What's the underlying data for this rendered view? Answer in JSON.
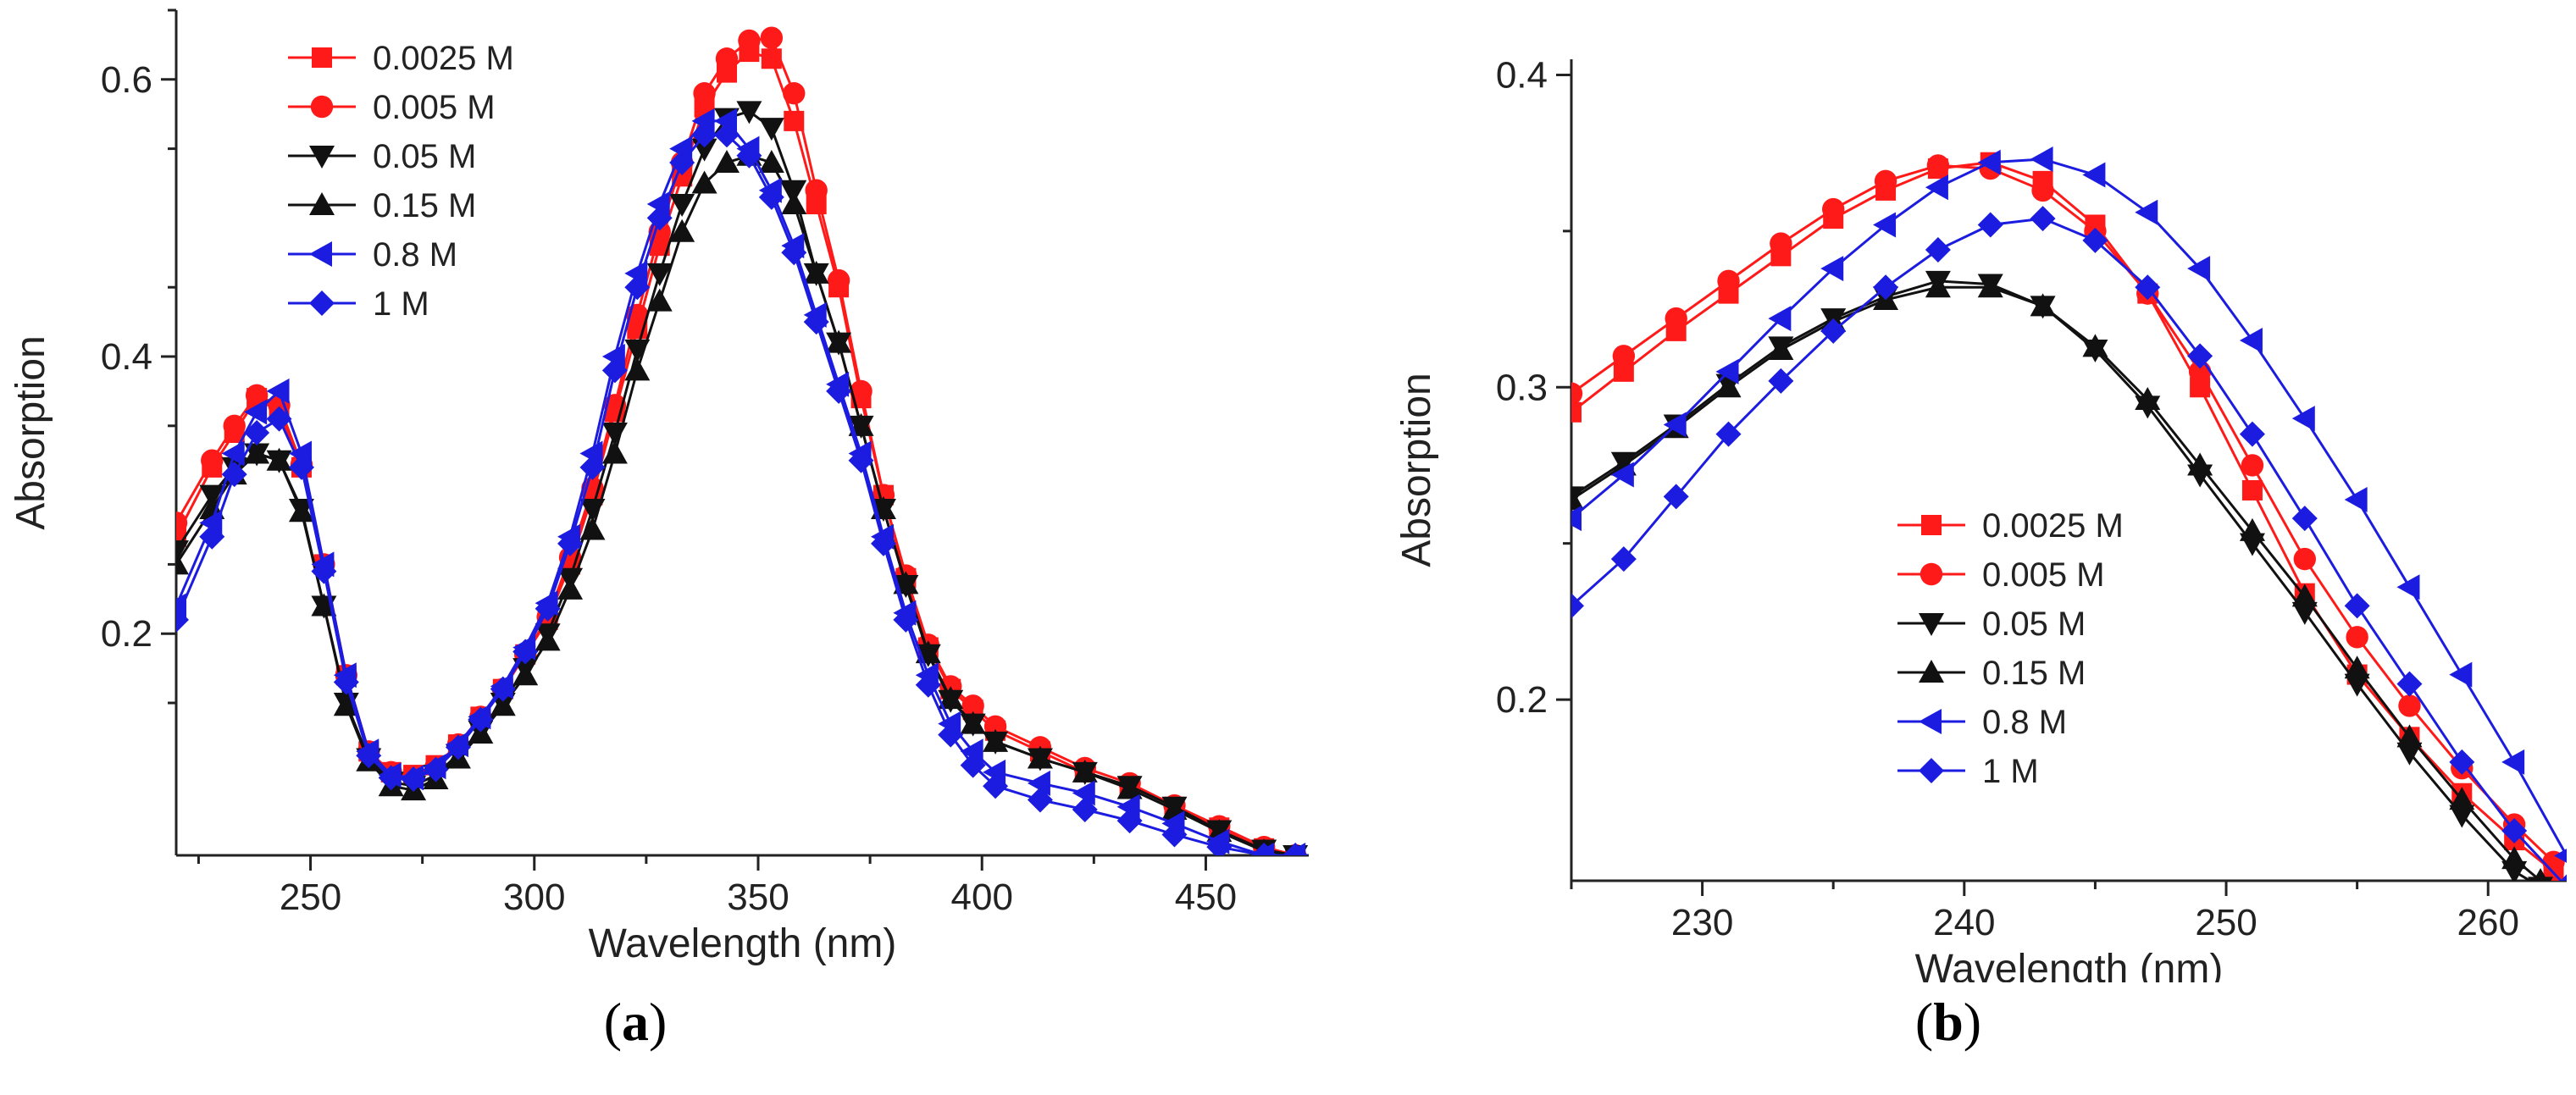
{
  "chart_data": [
    {
      "type": "line",
      "panel_label": "(a)",
      "panel_letter": "a",
      "xlabel": "Wavelength (nm)",
      "ylabel": "Absorption",
      "xlim": [
        220,
        473
      ],
      "ylim": [
        0.04,
        0.65
      ],
      "xticks": [
        250,
        300,
        350,
        400,
        450
      ],
      "xtick_labels": [
        "250",
        "300",
        "350",
        "400",
        "450"
      ],
      "xminor": [
        225,
        275,
        325,
        375,
        425,
        475
      ],
      "yticks": [
        0.2,
        0.4,
        0.6
      ],
      "ytick_labels": [
        "0.2",
        "0.4",
        "0.6"
      ],
      "legend_position": "top-left",
      "series": [
        {
          "name": "0.0025 M",
          "color": "#ff1a1a",
          "marker": "square",
          "x": [
            220,
            228,
            233,
            238,
            243,
            248,
            253,
            258,
            263,
            268,
            273,
            278,
            283,
            288,
            293,
            298,
            303,
            308,
            313,
            318,
            323,
            328,
            333,
            338,
            343,
            348,
            353,
            358,
            363,
            368,
            373,
            378,
            383,
            388,
            393,
            398,
            403,
            413,
            423,
            433,
            443,
            453,
            463,
            470
          ],
          "y": [
            0.27,
            0.32,
            0.345,
            0.37,
            0.36,
            0.32,
            0.25,
            0.17,
            0.115,
            0.1,
            0.098,
            0.105,
            0.12,
            0.14,
            0.16,
            0.185,
            0.21,
            0.25,
            0.3,
            0.36,
            0.42,
            0.48,
            0.53,
            0.58,
            0.605,
            0.62,
            0.615,
            0.57,
            0.51,
            0.45,
            0.37,
            0.3,
            0.24,
            0.19,
            0.16,
            0.145,
            0.13,
            0.115,
            0.1,
            0.09,
            0.075,
            0.06,
            0.045,
            0.04
          ]
        },
        {
          "name": "0.005 M",
          "color": "#ff1a1a",
          "marker": "circle",
          "x": [
            220,
            228,
            233,
            238,
            243,
            248,
            253,
            258,
            263,
            268,
            273,
            278,
            283,
            288,
            293,
            298,
            303,
            308,
            313,
            318,
            323,
            328,
            333,
            338,
            343,
            348,
            353,
            358,
            363,
            368,
            373,
            378,
            383,
            388,
            393,
            398,
            403,
            413,
            423,
            433,
            443,
            453,
            463,
            470
          ],
          "y": [
            0.28,
            0.325,
            0.35,
            0.372,
            0.365,
            0.322,
            0.25,
            0.17,
            0.115,
            0.1,
            0.097,
            0.104,
            0.12,
            0.14,
            0.16,
            0.185,
            0.212,
            0.255,
            0.305,
            0.365,
            0.43,
            0.49,
            0.54,
            0.59,
            0.615,
            0.628,
            0.63,
            0.59,
            0.52,
            0.455,
            0.375,
            0.3,
            0.242,
            0.192,
            0.162,
            0.148,
            0.133,
            0.118,
            0.103,
            0.092,
            0.076,
            0.061,
            0.046,
            0.04
          ]
        },
        {
          "name": "0.05 M",
          "color": "#111111",
          "marker": "triangle-down",
          "x": [
            220,
            228,
            233,
            238,
            243,
            248,
            253,
            258,
            263,
            268,
            273,
            278,
            283,
            288,
            293,
            298,
            303,
            308,
            313,
            318,
            323,
            328,
            333,
            338,
            343,
            348,
            353,
            358,
            363,
            368,
            373,
            378,
            383,
            388,
            393,
            398,
            403,
            413,
            423,
            433,
            443,
            453,
            463,
            470
          ],
          "y": [
            0.26,
            0.3,
            0.32,
            0.33,
            0.325,
            0.29,
            0.22,
            0.15,
            0.11,
            0.093,
            0.09,
            0.098,
            0.113,
            0.13,
            0.15,
            0.175,
            0.2,
            0.24,
            0.29,
            0.345,
            0.405,
            0.46,
            0.51,
            0.55,
            0.572,
            0.577,
            0.565,
            0.52,
            0.46,
            0.41,
            0.35,
            0.29,
            0.235,
            0.185,
            0.152,
            0.135,
            0.122,
            0.11,
            0.1,
            0.09,
            0.075,
            0.058,
            0.044,
            0.04
          ]
        },
        {
          "name": "0.15 M",
          "color": "#111111",
          "marker": "triangle-up",
          "x": [
            220,
            228,
            233,
            238,
            243,
            248,
            253,
            258,
            263,
            268,
            273,
            278,
            283,
            288,
            293,
            298,
            303,
            308,
            313,
            318,
            323,
            328,
            333,
            338,
            343,
            348,
            353,
            358,
            363,
            368,
            373,
            378,
            383,
            388,
            393,
            398,
            403,
            413,
            423,
            433,
            443,
            453,
            463,
            470
          ],
          "y": [
            0.25,
            0.29,
            0.315,
            0.33,
            0.325,
            0.288,
            0.22,
            0.148,
            0.108,
            0.09,
            0.087,
            0.095,
            0.11,
            0.128,
            0.148,
            0.17,
            0.195,
            0.232,
            0.275,
            0.33,
            0.39,
            0.44,
            0.49,
            0.525,
            0.54,
            0.545,
            0.54,
            0.51,
            0.46,
            0.41,
            0.35,
            0.29,
            0.236,
            0.186,
            0.153,
            0.135,
            0.122,
            0.11,
            0.1,
            0.088,
            0.073,
            0.057,
            0.043,
            0.04
          ]
        },
        {
          "name": "0.8 M",
          "color": "#1c1ce0",
          "marker": "triangle-left",
          "x": [
            220,
            228,
            233,
            238,
            243,
            248,
            253,
            258,
            263,
            268,
            273,
            278,
            283,
            288,
            293,
            298,
            303,
            308,
            313,
            318,
            323,
            328,
            333,
            338,
            343,
            348,
            353,
            358,
            363,
            368,
            373,
            378,
            383,
            388,
            393,
            398,
            403,
            413,
            423,
            433,
            443,
            453,
            463,
            470
          ],
          "y": [
            0.22,
            0.28,
            0.33,
            0.36,
            0.375,
            0.33,
            0.25,
            0.17,
            0.115,
            0.098,
            0.096,
            0.104,
            0.12,
            0.14,
            0.162,
            0.19,
            0.222,
            0.27,
            0.33,
            0.4,
            0.46,
            0.51,
            0.55,
            0.57,
            0.57,
            0.55,
            0.52,
            0.48,
            0.43,
            0.38,
            0.33,
            0.27,
            0.215,
            0.17,
            0.135,
            0.115,
            0.1,
            0.092,
            0.085,
            0.075,
            0.063,
            0.05,
            0.04,
            0.04
          ]
        },
        {
          "name": "1 M",
          "color": "#1c1ce0",
          "marker": "diamond",
          "x": [
            220,
            228,
            233,
            238,
            243,
            248,
            253,
            258,
            263,
            268,
            273,
            278,
            283,
            288,
            293,
            298,
            303,
            308,
            313,
            318,
            323,
            328,
            333,
            338,
            343,
            348,
            353,
            358,
            363,
            368,
            373,
            378,
            383,
            388,
            393,
            398,
            403,
            413,
            423,
            433,
            443,
            453,
            463,
            470
          ],
          "y": [
            0.21,
            0.27,
            0.315,
            0.345,
            0.355,
            0.32,
            0.245,
            0.165,
            0.112,
            0.096,
            0.095,
            0.102,
            0.118,
            0.138,
            0.16,
            0.187,
            0.218,
            0.265,
            0.32,
            0.39,
            0.45,
            0.5,
            0.54,
            0.56,
            0.56,
            0.545,
            0.515,
            0.475,
            0.425,
            0.375,
            0.325,
            0.265,
            0.21,
            0.163,
            0.127,
            0.105,
            0.09,
            0.08,
            0.073,
            0.065,
            0.055,
            0.046,
            0.04,
            0.04
          ]
        }
      ]
    },
    {
      "type": "line",
      "panel_label": "(b)",
      "panel_letter": "b",
      "xlabel": "Wavelength (nm)",
      "ylabel": "Absorption",
      "xlim": [
        225,
        263
      ],
      "ylim": [
        0.142,
        0.405
      ],
      "xticks": [
        230,
        240,
        250,
        260
      ],
      "xtick_labels": [
        "230",
        "240",
        "250",
        "260"
      ],
      "xminor": [
        225,
        235,
        245,
        255
      ],
      "yticks": [
        0.2,
        0.3,
        0.4
      ],
      "ytick_labels": [
        "0.2",
        "0.3",
        "0.4"
      ],
      "legend_position": "center-bottom",
      "series": [
        {
          "name": "0.0025 M",
          "color": "#ff1a1a",
          "marker": "square",
          "x": [
            225,
            227,
            229,
            231,
            233,
            235,
            237,
            239,
            241,
            243,
            245,
            247,
            249,
            251,
            253,
            255,
            257,
            259,
            261,
            262.5
          ],
          "y": [
            0.292,
            0.305,
            0.318,
            0.33,
            0.342,
            0.354,
            0.363,
            0.37,
            0.372,
            0.366,
            0.352,
            0.33,
            0.3,
            0.267,
            0.234,
            0.208,
            0.188,
            0.17,
            0.155,
            0.145
          ]
        },
        {
          "name": "0.005 M",
          "color": "#ff1a1a",
          "marker": "circle",
          "x": [
            225,
            227,
            229,
            231,
            233,
            235,
            237,
            239,
            241,
            243,
            245,
            247,
            249,
            251,
            253,
            255,
            257,
            259,
            261,
            262.5
          ],
          "y": [
            0.298,
            0.31,
            0.322,
            0.334,
            0.346,
            0.357,
            0.366,
            0.371,
            0.37,
            0.363,
            0.35,
            0.33,
            0.305,
            0.275,
            0.245,
            0.22,
            0.198,
            0.178,
            0.16,
            0.148
          ]
        },
        {
          "name": "0.05 M",
          "color": "#111111",
          "marker": "triangle-down",
          "x": [
            225,
            227,
            229,
            231,
            233,
            235,
            237,
            239,
            241,
            243,
            245,
            247,
            249,
            251,
            253,
            255,
            257,
            259,
            261,
            262
          ],
          "y": [
            0.265,
            0.276,
            0.288,
            0.301,
            0.313,
            0.322,
            0.329,
            0.334,
            0.333,
            0.326,
            0.312,
            0.294,
            0.272,
            0.25,
            0.228,
            0.205,
            0.183,
            0.163,
            0.145,
            0.14
          ]
        },
        {
          "name": "0.15 M",
          "color": "#111111",
          "marker": "triangle-up",
          "x": [
            225,
            227,
            229,
            231,
            233,
            235,
            237,
            239,
            241,
            243,
            245,
            247,
            249,
            251,
            253,
            255,
            257,
            259,
            261,
            262
          ],
          "y": [
            0.264,
            0.275,
            0.287,
            0.3,
            0.312,
            0.321,
            0.328,
            0.332,
            0.332,
            0.326,
            0.313,
            0.296,
            0.275,
            0.254,
            0.233,
            0.21,
            0.188,
            0.168,
            0.149,
            0.142
          ]
        },
        {
          "name": "0.8 M",
          "color": "#1c1ce0",
          "marker": "triangle-left",
          "x": [
            225,
            227,
            229,
            231,
            233,
            235,
            237,
            239,
            241,
            243,
            245,
            247,
            249,
            251,
            253,
            255,
            257,
            259,
            261,
            263
          ],
          "y": [
            0.258,
            0.272,
            0.288,
            0.305,
            0.322,
            0.338,
            0.352,
            0.364,
            0.372,
            0.373,
            0.368,
            0.356,
            0.338,
            0.315,
            0.29,
            0.264,
            0.236,
            0.208,
            0.18,
            0.15
          ]
        },
        {
          "name": "1 M",
          "color": "#1c1ce0",
          "marker": "diamond",
          "x": [
            225,
            227,
            229,
            231,
            233,
            235,
            237,
            239,
            241,
            243,
            245,
            247,
            249,
            251,
            253,
            255,
            257,
            259,
            261,
            263
          ],
          "y": [
            0.23,
            0.245,
            0.265,
            0.285,
            0.302,
            0.318,
            0.332,
            0.344,
            0.352,
            0.354,
            0.347,
            0.332,
            0.31,
            0.285,
            0.258,
            0.23,
            0.205,
            0.18,
            0.158,
            0.14
          ]
        }
      ]
    }
  ]
}
